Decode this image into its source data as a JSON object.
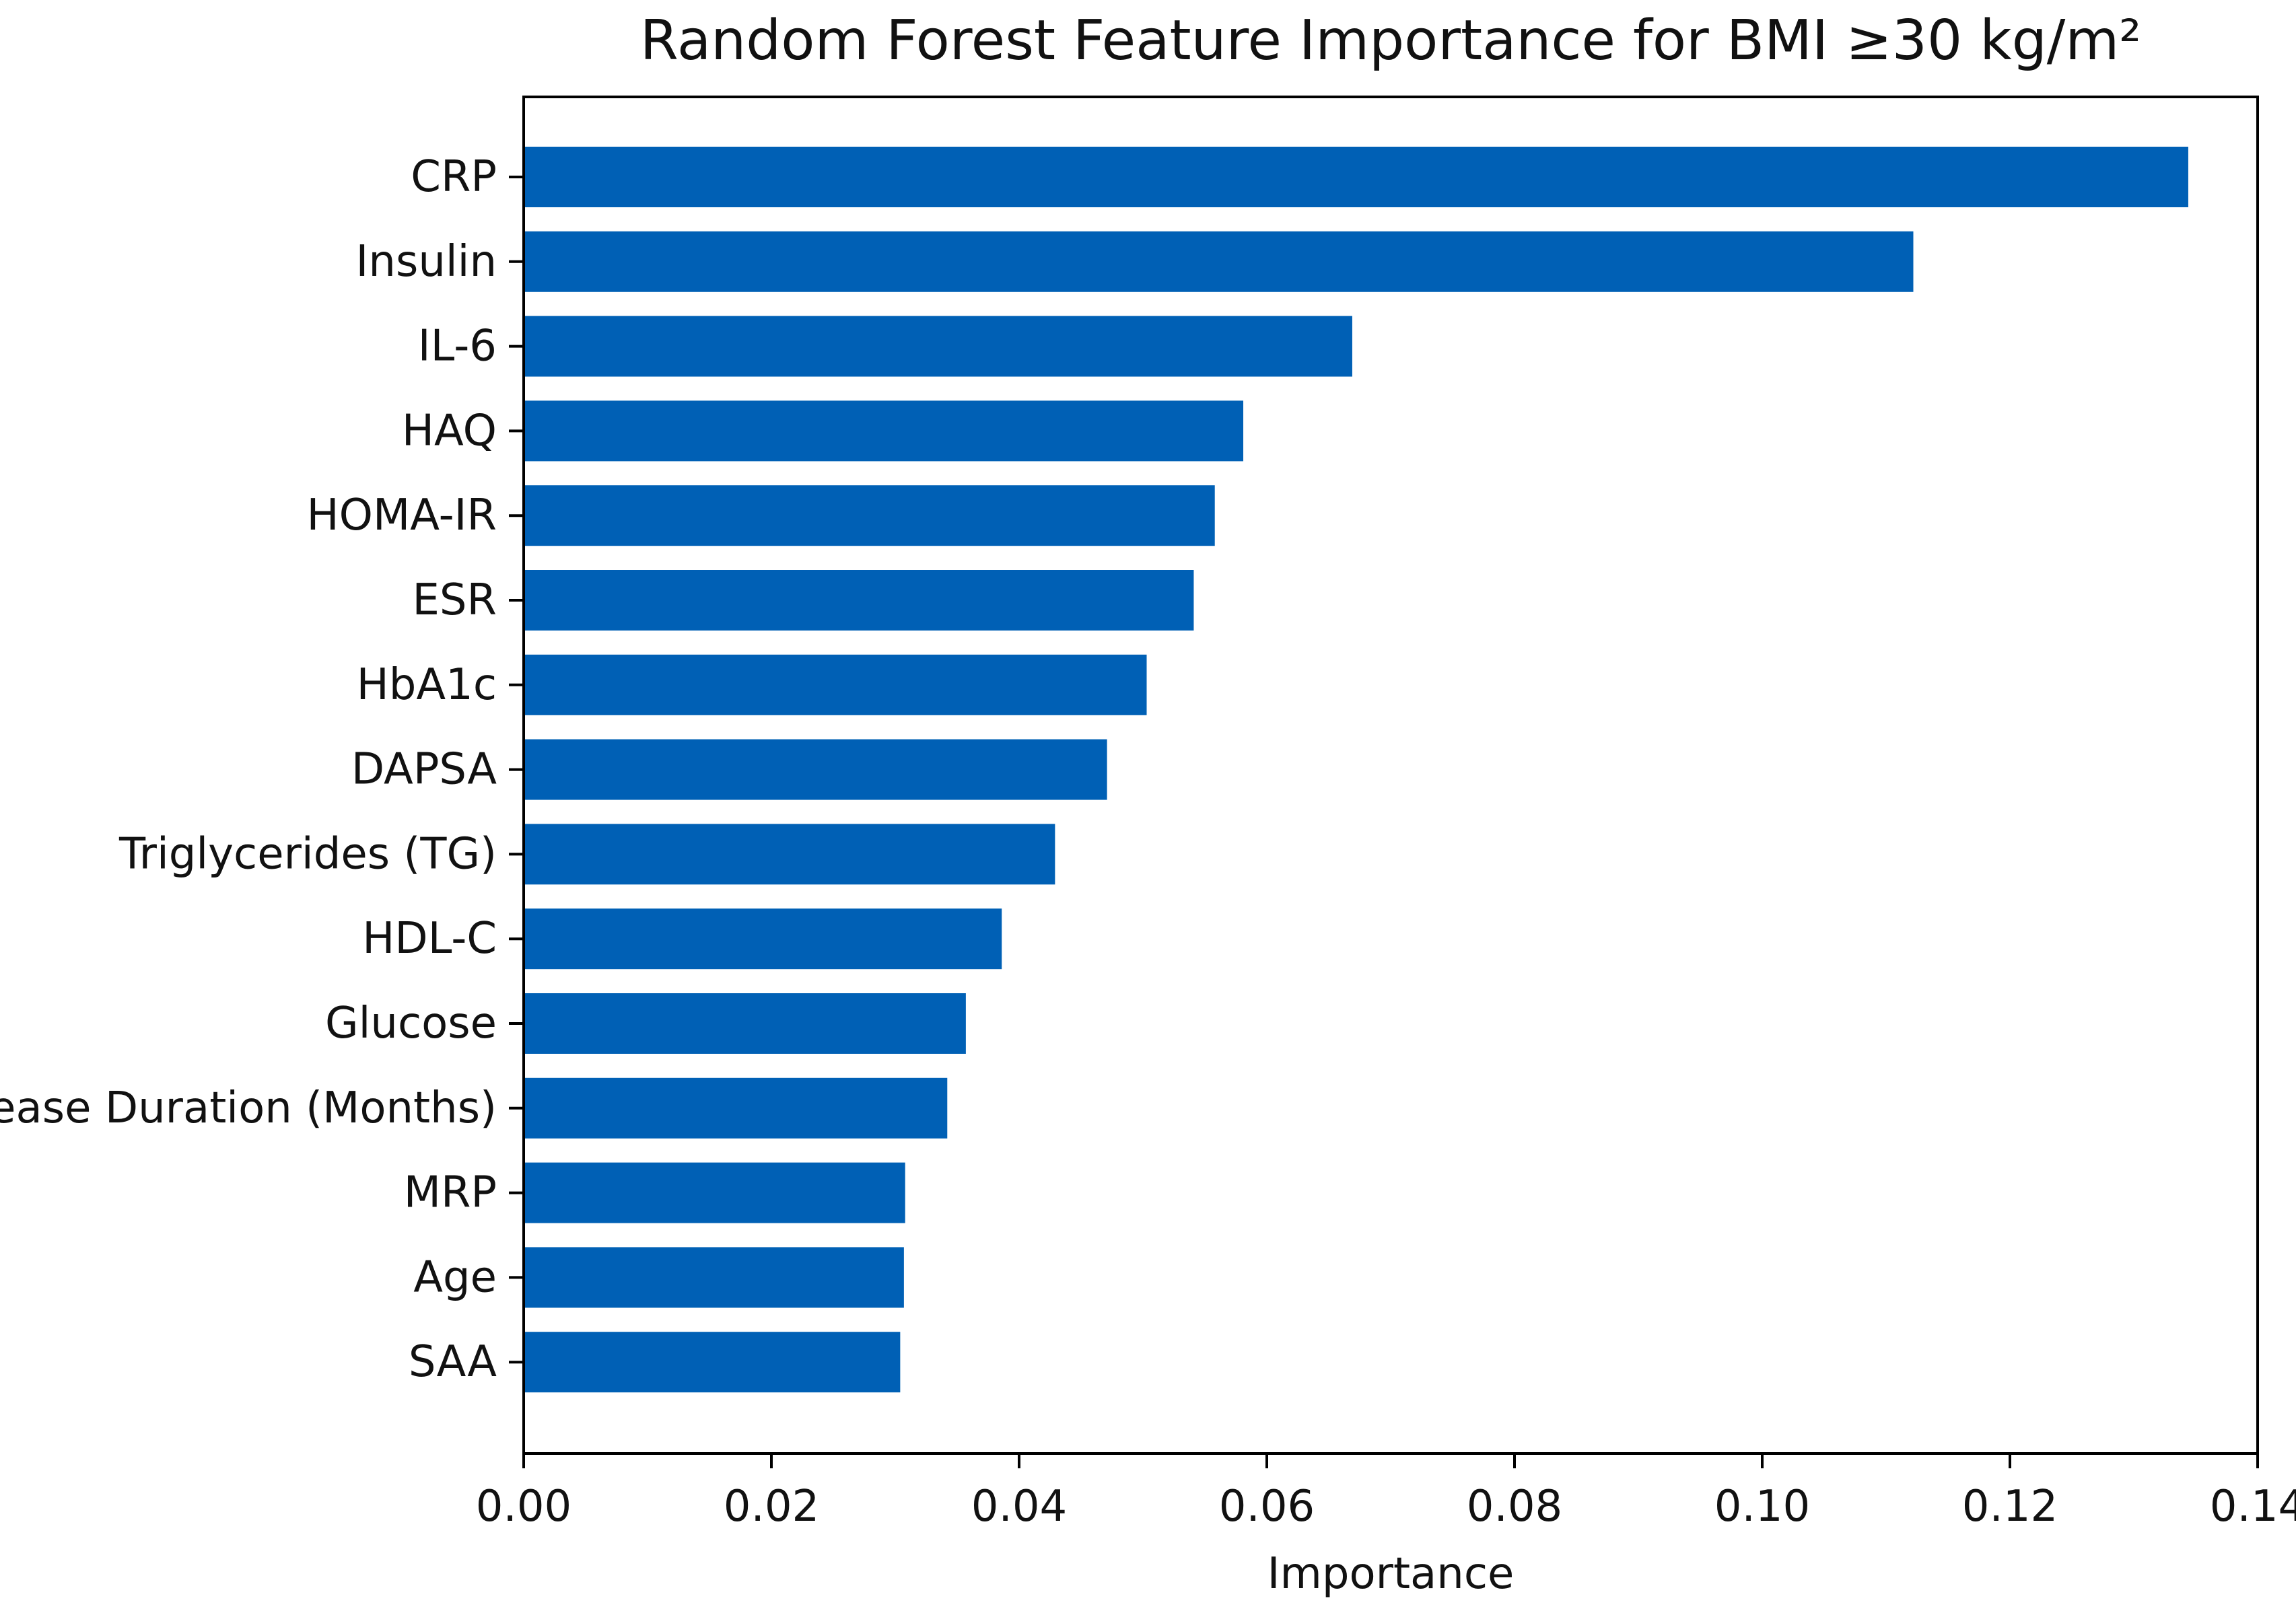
{
  "chart_data": {
    "type": "bar",
    "orientation": "horizontal",
    "title": "Random Forest Feature Importance for BMI ≥30 kg/m²",
    "xlabel": "Importance",
    "ylabel": "",
    "xlim": [
      0,
      0.14
    ],
    "x_ticks": [
      "0.00",
      "0.02",
      "0.04",
      "0.06",
      "0.08",
      "0.10",
      "0.12",
      "0.14"
    ],
    "categories": [
      "CRP",
      "Insulin",
      "IL-6",
      "HAQ",
      "HOMA-IR",
      "ESR",
      "HbA1c",
      "DAPSA",
      "Triglycerides (TG)",
      "HDL-C",
      "Glucose",
      "Disease Duration (Months)",
      "MRP",
      "Age",
      "SAA"
    ],
    "values": [
      0.1344,
      0.1122,
      0.0669,
      0.0581,
      0.0558,
      0.0541,
      0.0503,
      0.0471,
      0.0429,
      0.0386,
      0.0357,
      0.0342,
      0.0308,
      0.0307,
      0.0304
    ],
    "bar_color": "#0060b5",
    "grid": false,
    "legend": "none"
  }
}
